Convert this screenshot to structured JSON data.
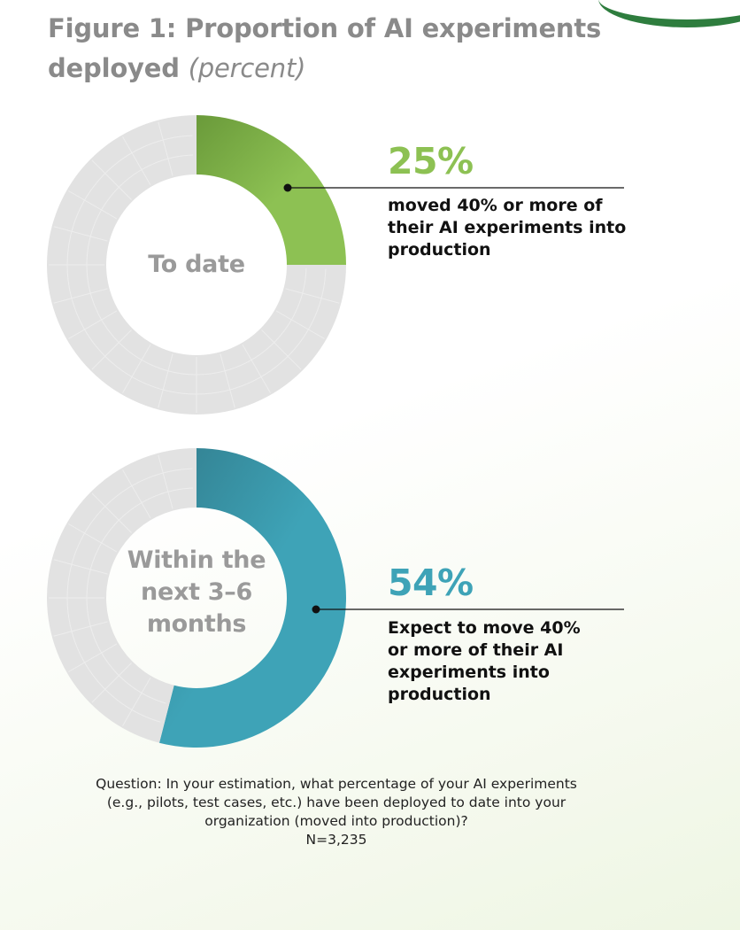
{
  "title": {
    "main": "Figure 1: Proportion of AI experiments deployed",
    "unit": "(percent)"
  },
  "chart_data": [
    {
      "type": "pie",
      "variant": "donut",
      "center_label": "To date",
      "value_label": "25%",
      "caption": "moved 40% or more of their AI experiments into production",
      "slices": [
        {
          "label": "moved 40% or more",
          "value": 25,
          "color": "#8dc153"
        },
        {
          "label": "",
          "value": 75,
          "color": "#e2e2e2"
        }
      ]
    },
    {
      "type": "pie",
      "variant": "donut",
      "center_label": "Within the next 3–6 months",
      "value_label": "54%",
      "caption": "Expect to move 40% or more of their AI experiments into production",
      "slices": [
        {
          "label": "expect to move 40% or more",
          "value": 54,
          "color": "#3ea3b7"
        },
        {
          "label": "",
          "value": 46,
          "color": "#e2e2e2"
        }
      ]
    }
  ],
  "colors": {
    "green": "#8dc153",
    "green_dark": "#6a9a3a",
    "teal": "#3ea3b7",
    "teal_dark": "#327e8e",
    "gray_ring": "#e2e2e2",
    "title_gray": "#8a8a8a"
  },
  "footnote": {
    "lines": [
      "Question: In your estimation, what percentage of your AI experiments",
      "(e.g., pilots, test cases, etc.) have been deployed to date into your",
      "organization (moved into production)?",
      "N=3,235"
    ]
  }
}
